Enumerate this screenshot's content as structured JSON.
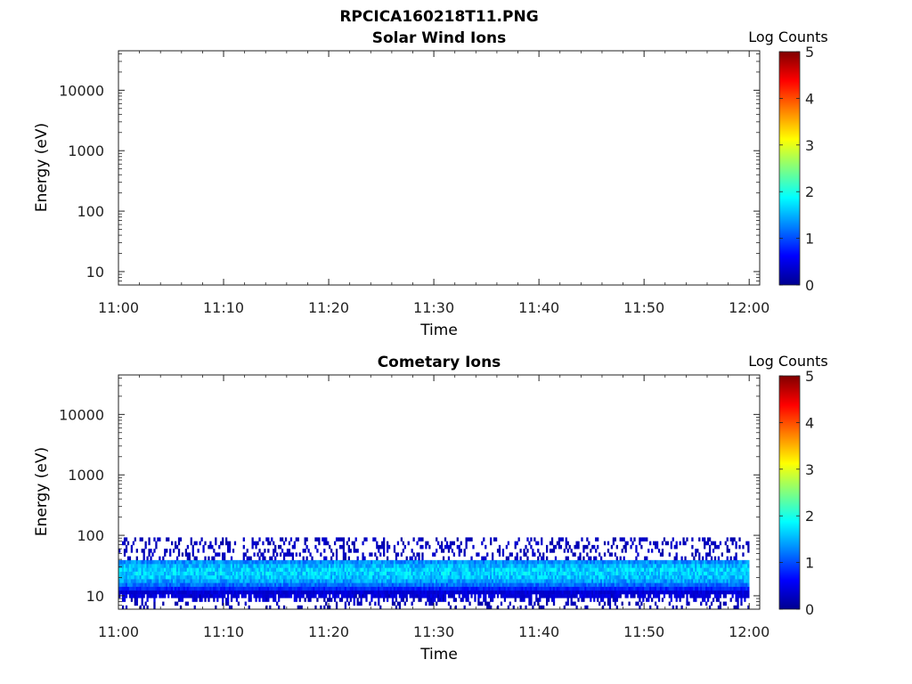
{
  "figure": {
    "title": "RPCICA160218T11.PNG"
  },
  "chart_data": [
    {
      "type": "heatmap",
      "title": "Solar Wind Ions",
      "xlabel": "Time",
      "ylabel": "Energy (eV)",
      "x_ticks": [
        "11:00",
        "11:10",
        "11:20",
        "11:30",
        "11:40",
        "11:50",
        "12:00"
      ],
      "xlim": [
        "11:00",
        "12:01"
      ],
      "y_scale": "log",
      "y_ticks": [
        "10",
        "100",
        "1000",
        "10000"
      ],
      "ylim": [
        6,
        45000
      ],
      "colorbar": {
        "label": "Log Counts",
        "ticks": [
          "0",
          "1",
          "2",
          "3",
          "4",
          "5"
        ],
        "range": [
          0,
          5
        ],
        "colormap": "jet"
      },
      "data": []
    },
    {
      "type": "heatmap",
      "title": "Cometary Ions",
      "xlabel": "Time",
      "ylabel": "Energy (eV)",
      "x_ticks": [
        "11:00",
        "11:10",
        "11:20",
        "11:30",
        "11:40",
        "11:50",
        "12:00"
      ],
      "xlim": [
        "11:00",
        "12:01"
      ],
      "y_scale": "log",
      "y_ticks": [
        "10",
        "100",
        "1000",
        "10000"
      ],
      "ylim": [
        6,
        45000
      ],
      "colorbar": {
        "label": "Log Counts",
        "ticks": [
          "0",
          "1",
          "2",
          "3",
          "4",
          "5"
        ],
        "range": [
          0,
          5
        ],
        "colormap": "jet"
      },
      "time_range": [
        "11:00",
        "12:00"
      ],
      "data": {
        "band_lower_eV": 10,
        "band_upper_eV": 38,
        "peak_energy_eV": 23,
        "peak_log_counts": 1.8,
        "sparse_upper_eV": 85,
        "sparse_log_counts": 0.3
      }
    }
  ]
}
